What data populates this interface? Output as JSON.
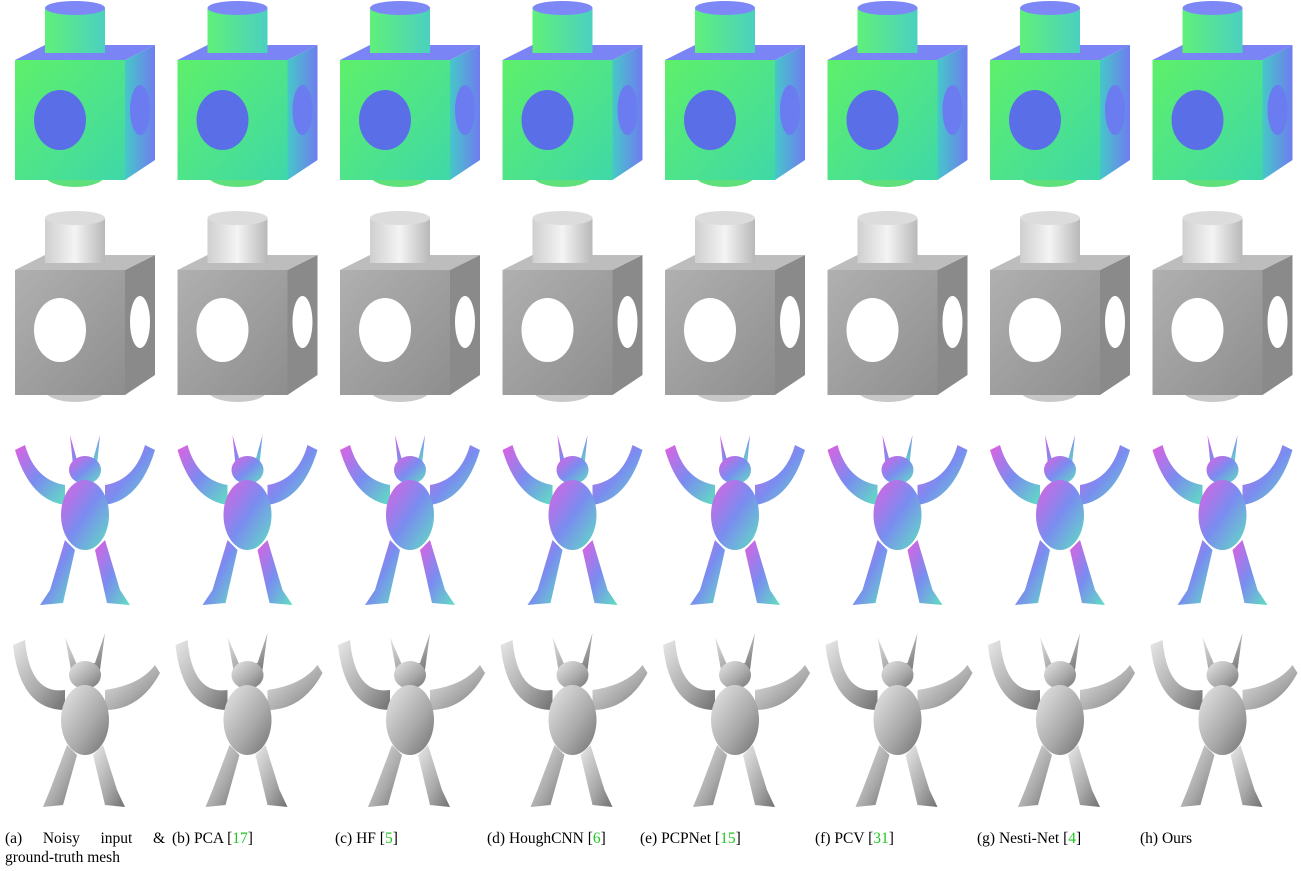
{
  "captions": [
    {
      "prefix": "(a) Noisy input & ground-truth mesh"
    },
    {
      "prefix": "(b) PCA [",
      "ref": "17",
      "suffix": "]"
    },
    {
      "prefix": "(c) HF [",
      "ref": "5",
      "suffix": "]"
    },
    {
      "prefix": "(d) HoughCNN [",
      "ref": "6",
      "suffix": "]"
    },
    {
      "prefix": "(e) PCPNet [",
      "ref": "15",
      "suffix": "]"
    },
    {
      "prefix": "(f) PCV [",
      "ref": "31",
      "suffix": "]"
    },
    {
      "prefix": "(g) Nesti-Net [",
      "ref": "4",
      "suffix": "]"
    },
    {
      "prefix": "(h) Ours"
    }
  ]
}
